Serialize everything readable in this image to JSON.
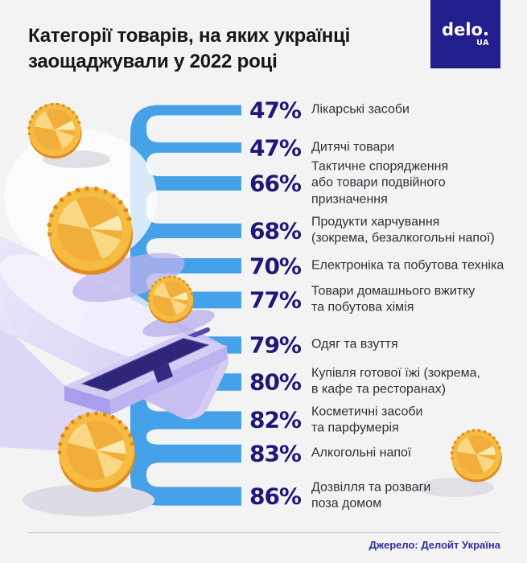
{
  "title": "Категорії товарів, на яких українці\nзаощаджували у 2022 році",
  "logo": {
    "name": "delo.",
    "suffix": "UA"
  },
  "rows": [
    {
      "pct": "47%",
      "label": "Лікарські засоби"
    },
    {
      "pct": "47%",
      "label": "Дитячі товари"
    },
    {
      "pct": "66%",
      "label": "Тактичне спорядження\nабо товари подвійного\nпризначення"
    },
    {
      "pct": "68%",
      "label": "Продукти харчування\n(зокрема, безалкогольні напої)"
    },
    {
      "pct": "70%",
      "label": "Електроніка та побутова техніка"
    },
    {
      "pct": "77%",
      "label": "Товари домашнього вжитку\nта побутова хімія"
    },
    {
      "pct": "79%",
      "label": "Одяг та взуття"
    },
    {
      "pct": "80%",
      "label": "Купівля готової їжі (зокрема,\nв кафе та ресторанах)"
    },
    {
      "pct": "82%",
      "label": "Косметичні засоби\nта парфумерія"
    },
    {
      "pct": "83%",
      "label": "Алкогольні напої"
    },
    {
      "pct": "86%",
      "label": "Дозвілля та розваги\nпоза домом"
    }
  ],
  "footer": {
    "source": "Джерело: Делойт Україна"
  },
  "colors": {
    "background": "#f4f3f4",
    "branch_blue": "#45a2e9",
    "percent_navy": "#1e1879",
    "label_text": "#2f2f38",
    "logo_background": "#221e8b",
    "footer_navy": "#2c2d9c",
    "coin_gold": "#f6bc41",
    "coin_rim": "#e08c22",
    "paper_lavender": "#d3cbf3",
    "printer_slot_navy": "#2d2679"
  },
  "chart_data": {
    "type": "bar",
    "orientation": "horizontal",
    "title": "Категорії товарів, на яких українці заощаджували у 2022 році",
    "unit": "%",
    "categories": [
      "Лікарські засоби",
      "Дитячі товари",
      "Тактичне спорядження або товари подвійного призначення",
      "Продукти харчування (зокрема, безалкогольні напої)",
      "Електроніка та побутова техніка",
      "Товари домашнього вжитку та побутова хімія",
      "Одяг та взуття",
      "Купівля готової їжі (зокрема, в кафе та ресторанах)",
      "Косметичні засоби та парфумерія",
      "Алкогольні напої",
      "Дозвілля та розваги поза домом"
    ],
    "values": [
      47,
      47,
      66,
      68,
      70,
      77,
      79,
      80,
      82,
      83,
      86
    ],
    "legend": false,
    "grid": false,
    "source": "Джерело: Делойт Україна"
  }
}
